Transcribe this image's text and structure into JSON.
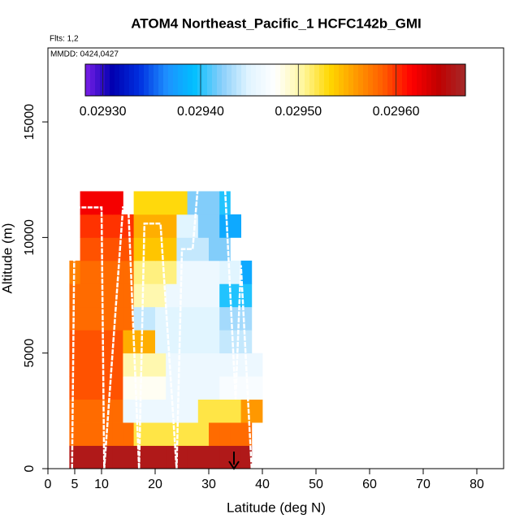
{
  "chart_data": {
    "type": "curtain",
    "title": "ATOM4 Northeast_Pacific_1 HCFC142b_GMI",
    "flights_label": "Flts: 1,2",
    "date_label": "MMDD: 0424,0427",
    "x_label": "Latitude (deg N)",
    "y_label": "Altitude (m)",
    "xlim": [
      0,
      85
    ],
    "ylim": [
      0,
      18200
    ],
    "xticks": [
      0,
      5,
      10,
      20,
      30,
      40,
      50,
      60,
      70,
      80
    ],
    "yticks": [
      0,
      5000,
      10000,
      15000
    ],
    "x_bins": [
      4,
      6,
      8,
      10,
      12,
      14,
      16,
      18,
      20,
      22,
      24,
      26,
      28,
      30,
      32,
      34,
      36,
      38,
      40
    ],
    "y_bins": [
      0,
      1000,
      2000,
      3000,
      4000,
      5000,
      6000,
      7000,
      8000,
      9000,
      10000,
      11000,
      12000
    ],
    "values": [
      [
        0.02966,
        0.02966,
        0.02966,
        0.02966,
        0.02966,
        0.02966,
        0.02966,
        0.02966,
        0.02966,
        0.02966,
        0.02966,
        0.02966,
        0.02966,
        0.02966,
        0.02966,
        0.02966,
        0.02966,
        null
      ],
      [
        0.02958,
        0.02958,
        0.02958,
        0.02958,
        0.02958,
        0.02958,
        0.02952,
        0.02952,
        0.02952,
        0.02952,
        0.02952,
        0.02952,
        0.02952,
        0.02958,
        0.02958,
        0.02958,
        0.02958,
        null
      ],
      [
        0.02958,
        0.02958,
        0.02958,
        0.02958,
        0.02958,
        0.02946,
        0.02946,
        0.02946,
        0.02946,
        0.02946,
        0.02946,
        0.02946,
        0.02952,
        0.02952,
        0.02952,
        0.02952,
        0.02956,
        0.02956
      ],
      [
        0.02959,
        0.02959,
        0.02959,
        0.02959,
        0.02959,
        0.02948,
        0.02948,
        0.02948,
        0.02948,
        0.02946,
        0.02946,
        0.02946,
        0.02946,
        0.02946,
        0.02947,
        0.02947,
        0.02947,
        0.02947
      ],
      [
        0.02959,
        0.02959,
        0.02959,
        0.02959,
        0.02959,
        0.0295,
        0.0295,
        0.0295,
        0.0295,
        0.02946,
        0.02946,
        0.02946,
        0.02946,
        0.02946,
        0.02946,
        0.02946,
        0.02946,
        0.02946
      ],
      [
        0.02959,
        0.02959,
        0.02959,
        0.02959,
        0.02959,
        0.02955,
        0.02955,
        0.02955,
        0.02945,
        0.02945,
        0.02945,
        0.02945,
        0.02945,
        0.02945,
        0.02944,
        0.02944,
        0.02944,
        null
      ],
      [
        0.02958,
        0.02958,
        0.02958,
        0.02958,
        0.02958,
        0.02958,
        0.02944,
        0.02944,
        0.02945,
        0.02945,
        0.02945,
        0.02945,
        0.02945,
        0.02945,
        0.02943,
        0.02943,
        0.02943,
        null
      ],
      [
        0.02958,
        0.02958,
        0.02958,
        0.02958,
        0.02958,
        0.02958,
        0.0295,
        0.0295,
        0.0295,
        0.02946,
        0.02946,
        0.02946,
        0.02946,
        0.02946,
        0.0294,
        0.0294,
        0.0294,
        null
      ],
      [
        0.02957,
        0.02958,
        0.02958,
        0.02958,
        0.02958,
        0.02958,
        0.02951,
        0.02951,
        0.02951,
        0.02951,
        0.02946,
        0.02946,
        0.02946,
        0.02946,
        0.02945,
        0.02945,
        0.02938,
        null
      ],
      [
        null,
        0.02959,
        0.02959,
        0.02959,
        0.02959,
        0.02959,
        0.02954,
        0.02954,
        0.02954,
        0.02954,
        0.02944,
        0.02944,
        0.02944,
        0.02942,
        0.02942,
        null,
        null,
        null
      ],
      [
        null,
        0.0296,
        0.0296,
        0.0296,
        0.0296,
        0.0296,
        0.02955,
        0.02955,
        0.02955,
        0.02955,
        0.02945,
        0.02945,
        0.02942,
        0.02942,
        0.02938,
        0.02938,
        null,
        null
      ],
      [
        null,
        0.02962,
        0.02962,
        0.02962,
        0.02962,
        null,
        0.02953,
        0.02953,
        0.02953,
        0.02953,
        0.02953,
        0.02942,
        0.02942,
        0.02942,
        0.0294,
        null,
        null,
        null
      ]
    ],
    "clim": [
      0.029282,
      0.029671
    ],
    "colorbar_ticks": [
      {
        "value": 0.0293,
        "label": "0.02930"
      },
      {
        "value": 0.0294,
        "label": "0.02940"
      },
      {
        "value": 0.0295,
        "label": "0.02950"
      },
      {
        "value": 0.0296,
        "label": "0.02960"
      }
    ],
    "colors": [
      "#7b1fe8",
      "#0000b0",
      "#0030e0",
      "#1e90ff",
      "#00bfff",
      "#87cefa",
      "#e0f4ff",
      "#ffffff",
      "#fff7a0",
      "#ffd700",
      "#ff9800",
      "#ff5a00",
      "#ff0000",
      "#c00000",
      "#a52a2a"
    ],
    "track": {
      "color": "#ffffff",
      "x": [
        4.5,
        5,
        10,
        10.5,
        14,
        15,
        17,
        18,
        21,
        24,
        25,
        27,
        28,
        33,
        35,
        36,
        38
      ],
      "y": [
        0,
        11300,
        11300,
        0,
        11300,
        11300,
        0,
        10600,
        10600,
        0,
        9500,
        9500,
        12300,
        12300,
        3000,
        8800,
        0
      ]
    }
  }
}
